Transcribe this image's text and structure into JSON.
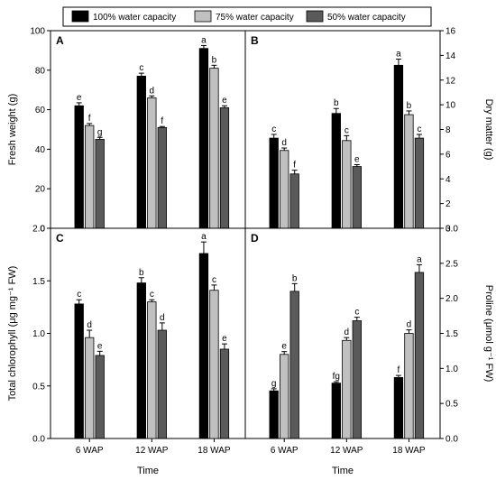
{
  "legend": {
    "entries": [
      {
        "name": "100% water capacity",
        "color": "#000000"
      },
      {
        "name": "75% water capacity",
        "color": "#c0c0c0"
      },
      {
        "name": "50% water capacity",
        "color": "#5a5a5a"
      }
    ]
  },
  "chart_data": [
    {
      "type": "bar",
      "panel": "A",
      "categories": [
        "6 WAP",
        "12 WAP",
        "18 WAP"
      ],
      "ylabel": "Fresh weight (g)",
      "xlabel": "",
      "ylim": [
        0,
        100
      ],
      "yticks": [
        0,
        20,
        40,
        60,
        80,
        100
      ],
      "series": [
        {
          "name": "100% water capacity",
          "values": [
            62,
            77,
            91
          ],
          "errors": [
            1.5,
            1.5,
            1.5
          ],
          "letters": [
            "e",
            "c",
            "a"
          ]
        },
        {
          "name": "75% water capacity",
          "values": [
            52,
            66,
            81
          ],
          "errors": [
            1,
            1,
            1.5
          ],
          "letters": [
            "f",
            "d",
            "b"
          ]
        },
        {
          "name": "50% water capacity",
          "values": [
            45,
            51,
            61
          ],
          "errors": [
            1,
            0.5,
            1
          ],
          "letters": [
            "g",
            "f",
            "e"
          ]
        }
      ]
    },
    {
      "type": "bar",
      "panel": "B",
      "categories": [
        "6 WAP",
        "12 WAP",
        "18 WAP"
      ],
      "ylabel": "Dry matter (g)",
      "xlabel": "",
      "ylim": [
        0,
        16
      ],
      "yticks": [
        0,
        2,
        4,
        6,
        8,
        10,
        12,
        14,
        16
      ],
      "series": [
        {
          "name": "100% water capacity",
          "values": [
            7.3,
            9.3,
            13.2
          ],
          "errors": [
            0.3,
            0.4,
            0.5
          ],
          "letters": [
            "c",
            "b",
            "a"
          ]
        },
        {
          "name": "75% water capacity",
          "values": [
            6.3,
            7.1,
            9.2
          ],
          "errors": [
            0.2,
            0.4,
            0.3
          ],
          "letters": [
            "d",
            "c",
            "b"
          ]
        },
        {
          "name": "50% water capacity",
          "values": [
            4.4,
            5.0,
            7.3
          ],
          "errors": [
            0.3,
            0.15,
            0.3
          ],
          "letters": [
            "f",
            "e",
            "c"
          ]
        }
      ]
    },
    {
      "type": "bar",
      "panel": "C",
      "categories": [
        "6 WAP",
        "12 WAP",
        "18 WAP"
      ],
      "ylabel": "Total chlorophyll (μg mg⁻¹ FW)",
      "xlabel": "Time",
      "ylim": [
        0,
        2.0
      ],
      "yticks": [
        0.0,
        0.5,
        1.0,
        1.5,
        2.0
      ],
      "series": [
        {
          "name": "100% water capacity",
          "values": [
            1.28,
            1.48,
            1.76
          ],
          "errors": [
            0.04,
            0.05,
            0.11
          ],
          "letters": [
            "c",
            "b",
            "a"
          ]
        },
        {
          "name": "75% water capacity",
          "values": [
            0.96,
            1.3,
            1.41
          ],
          "errors": [
            0.07,
            0.02,
            0.05
          ],
          "letters": [
            "d",
            "c",
            "c"
          ]
        },
        {
          "name": "50% water capacity",
          "values": [
            0.79,
            1.03,
            0.85
          ],
          "errors": [
            0.04,
            0.07,
            0.05
          ],
          "letters": [
            "e",
            "d",
            "e"
          ]
        }
      ]
    },
    {
      "type": "bar",
      "panel": "D",
      "categories": [
        "6 WAP",
        "12 WAP",
        "18 WAP"
      ],
      "ylabel": "Proline (μmol g⁻¹ FW)",
      "xlabel": "Time",
      "ylim": [
        0,
        3.0
      ],
      "yticks": [
        0.0,
        0.5,
        1.0,
        1.5,
        2.0,
        2.5,
        3.0
      ],
      "series": [
        {
          "name": "100% water capacity",
          "values": [
            0.68,
            0.79,
            0.87
          ],
          "errors": [
            0.03,
            0.02,
            0.03
          ],
          "letters": [
            "g",
            "fg",
            "f"
          ]
        },
        {
          "name": "75% water capacity",
          "values": [
            1.2,
            1.4,
            1.5
          ],
          "errors": [
            0.04,
            0.04,
            0.05
          ],
          "letters": [
            "e",
            "d",
            "d"
          ]
        },
        {
          "name": "50% water capacity",
          "values": [
            2.1,
            1.68,
            2.37
          ],
          "errors": [
            0.11,
            0.05,
            0.11
          ],
          "letters": [
            "b",
            "c",
            "a"
          ]
        }
      ]
    }
  ]
}
